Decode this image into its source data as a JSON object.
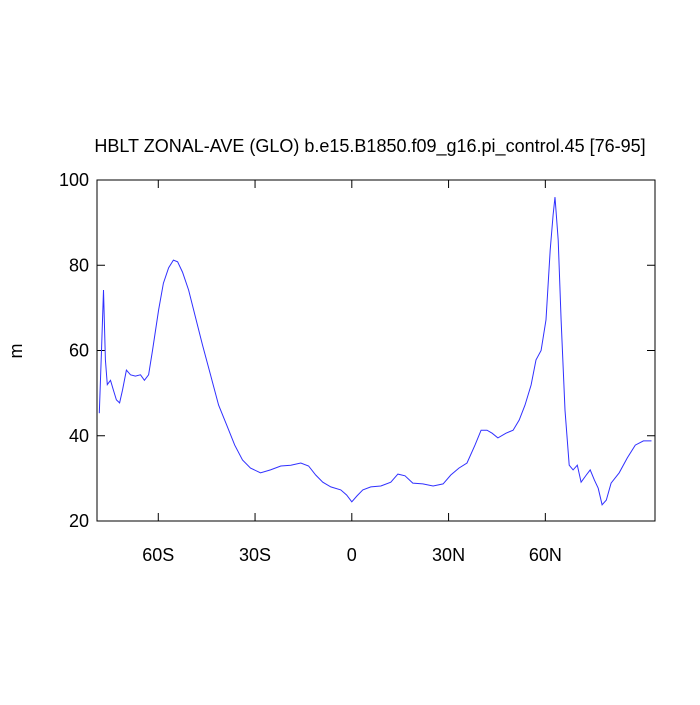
{
  "chart_data": {
    "type": "line",
    "title": "HBLT ZONAL-AVE (GLO) b.e15.B1850.f09_g16.pi_control.45 [76-95]",
    "y_label": "m",
    "xlim": [
      -79,
      94
    ],
    "ylim": [
      20,
      100
    ],
    "xticks": [
      {
        "value": -60,
        "label": "60S"
      },
      {
        "value": -30,
        "label": "30S"
      },
      0,
      {
        "value": 30,
        "label": "30N"
      },
      {
        "value": 60,
        "label": "60N"
      }
    ],
    "yticks": [
      20,
      40,
      60,
      80,
      100
    ],
    "series": [
      {
        "color": "#3030ff",
        "x": [
          -78.3,
          -77.6,
          -77,
          -76.4,
          -75.8,
          -74.8,
          -73.9,
          -73,
          -72,
          -71.1,
          -69.9,
          -68.6,
          -67.1,
          -65.5,
          -64.3,
          -63,
          -61.8,
          -59.9,
          -58.4,
          -56.8,
          -55.3,
          -54,
          -52.5,
          -50.6,
          -48.4,
          -46.3,
          -43.8,
          -41.3,
          -38.8,
          -36.3,
          -33.9,
          -31.4,
          -28.3,
          -25.2,
          -22,
          -18.9,
          -15.8,
          -13.4,
          -11.2,
          -9,
          -6.5,
          -3.4,
          -1.6,
          0,
          1.6,
          3.4,
          5.9,
          9,
          12.1,
          14.3,
          16.5,
          18.9,
          22,
          25.2,
          28.3,
          30.7,
          33.2,
          35.7,
          38.2,
          40.1,
          41.9,
          43.5,
          45.3,
          47.8,
          50,
          51.9,
          53.7,
          55.6,
          57.1,
          58.7,
          60.2,
          61.5,
          62.4,
          63,
          64,
          64.9,
          66.1,
          67.4,
          68.6,
          69.9,
          71.1,
          72.7,
          73.9,
          75.2,
          76.4,
          77.6,
          78.9,
          80.4,
          82.9,
          85.4,
          87.9,
          90.4,
          92.9
        ],
        "values": [
          45.3,
          60,
          74.2,
          57.8,
          52,
          53,
          50.7,
          48.4,
          47.7,
          50.7,
          55.4,
          54.3,
          54,
          54.3,
          53,
          54.3,
          60,
          69.5,
          75.8,
          79.4,
          81.2,
          80.8,
          78.4,
          74.2,
          67.6,
          61.3,
          54.3,
          47.2,
          42.5,
          37.8,
          34.3,
          32.4,
          31.3,
          32,
          32.9,
          33.1,
          33.6,
          32.9,
          30.8,
          29.1,
          28,
          27.3,
          26.1,
          24.5,
          25.9,
          27.3,
          28,
          28.2,
          29.1,
          31,
          30.6,
          28.9,
          28.7,
          28.2,
          28.7,
          30.8,
          32.4,
          33.6,
          37.8,
          41.3,
          41.3,
          40.6,
          39.5,
          40.6,
          41.3,
          43.7,
          47.2,
          51.9,
          57.8,
          60,
          67.2,
          83.6,
          91.8,
          96,
          85.9,
          67.2,
          46,
          33.1,
          32,
          33.1,
          29.1,
          30.8,
          32,
          29.6,
          27.7,
          23.8,
          24.9,
          28.9,
          31.3,
          34.8,
          37.8,
          38.8,
          38.8
        ]
      }
    ]
  }
}
